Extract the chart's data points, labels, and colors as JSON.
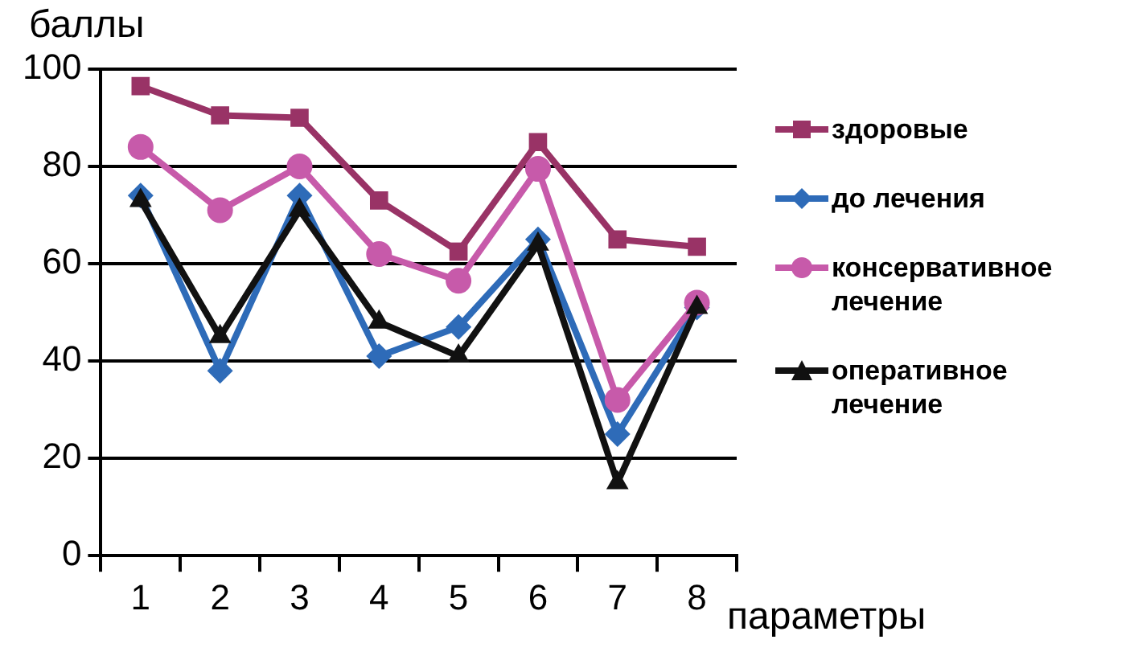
{
  "chart_data": {
    "type": "line",
    "xlabel": "параметры",
    "ylabel": "баллы",
    "categories": [
      "1",
      "2",
      "3",
      "4",
      "5",
      "6",
      "7",
      "8"
    ],
    "ylim": [
      0,
      100
    ],
    "yticks": [
      0,
      20,
      40,
      60,
      80,
      100
    ],
    "grid": "y",
    "legend": "right",
    "line_style": "solid",
    "series": [
      {
        "name": "здоровые",
        "color": "#993366",
        "marker": "square",
        "values": [
          96.5,
          90.5,
          90,
          73,
          62.5,
          85,
          65,
          63.5
        ]
      },
      {
        "name": "до лечения",
        "color": "#2e6bb8",
        "marker": "diamond",
        "values": [
          74,
          38,
          74,
          41,
          47,
          65,
          25,
          51
        ]
      },
      {
        "name": "консервативное лечение",
        "color": "#c75aaa",
        "marker": "circle",
        "values": [
          84,
          71,
          80,
          62,
          56.5,
          79.5,
          32,
          52
        ]
      },
      {
        "name": "оперативное лечение",
        "color": "#111111",
        "marker": "triangle",
        "values": [
          73,
          45,
          71,
          48,
          41,
          64,
          15,
          51
        ]
      }
    ]
  }
}
